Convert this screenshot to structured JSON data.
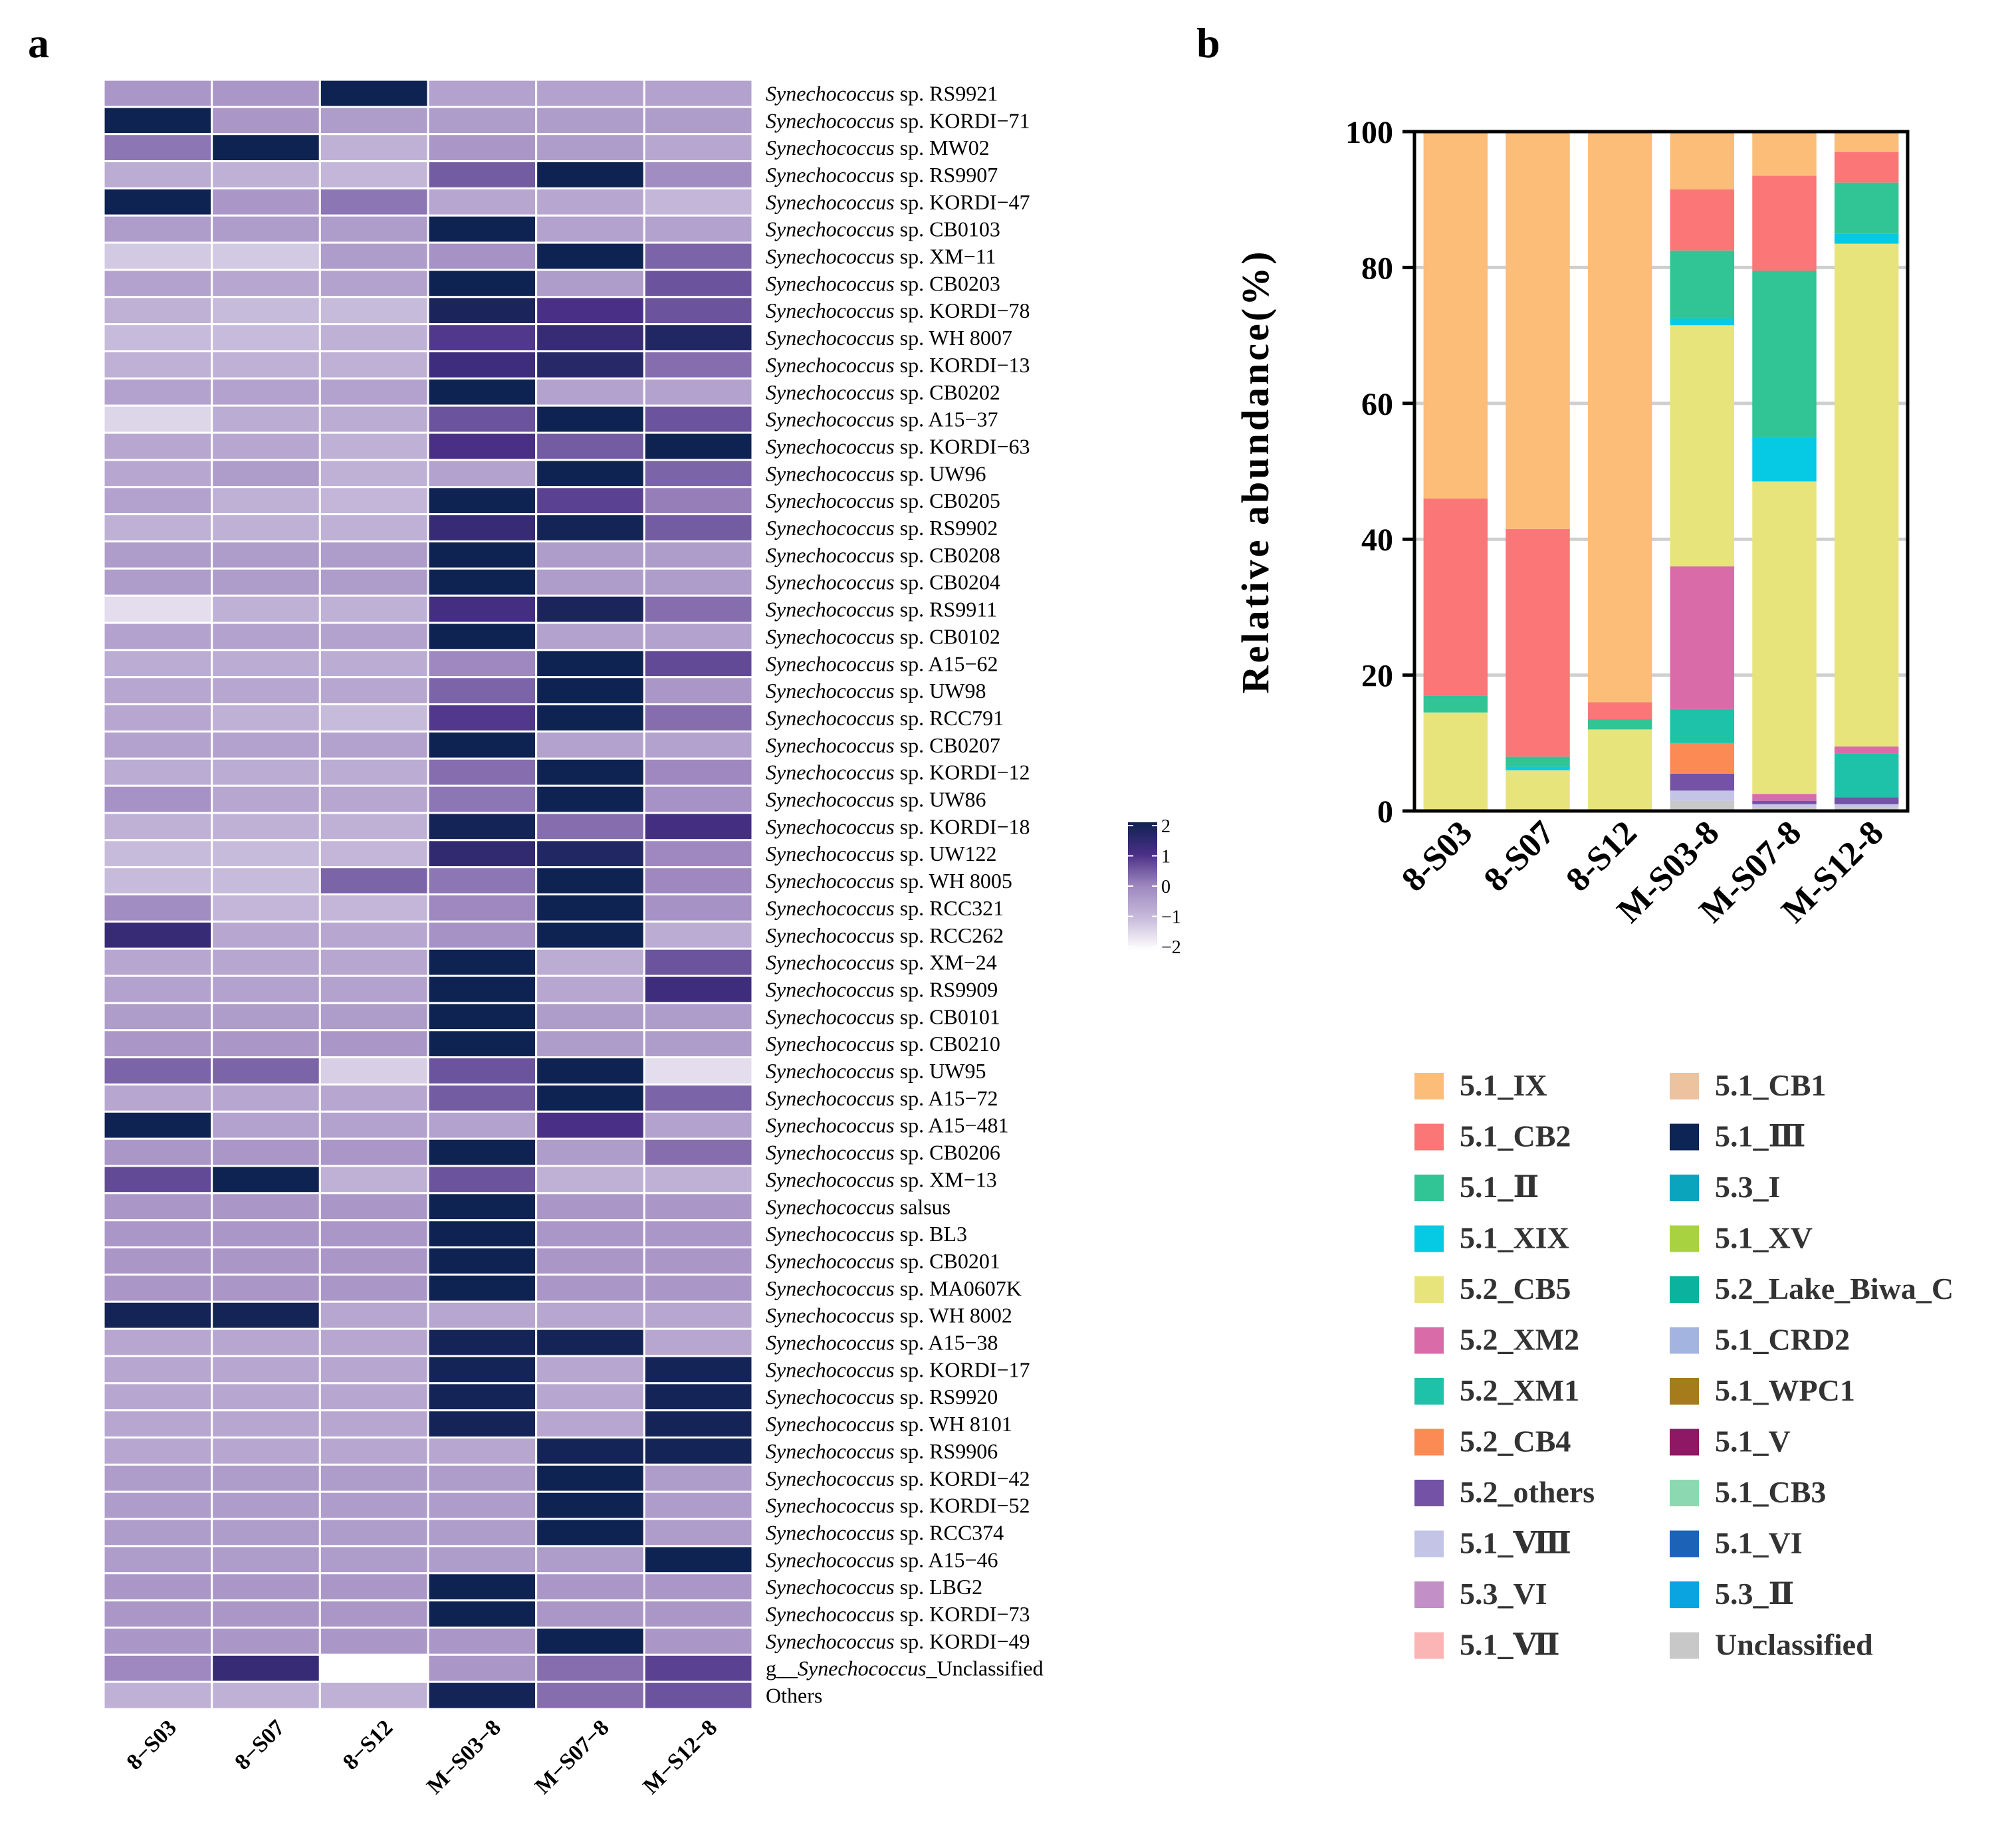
{
  "panels": {
    "a": "a",
    "b": "b"
  },
  "heatmap": {
    "samples": [
      "8−S03",
      "8−S07",
      "8−S12",
      "M−S03−8",
      "M−S07−8",
      "M−S12−8"
    ],
    "rows": [
      {
        "prefix": "Synechococcus",
        "suffix": " sp. RS9921",
        "italic_first": true
      },
      {
        "prefix": "Synechococcus",
        "suffix": " sp. KORDI−71",
        "italic_first": true
      },
      {
        "prefix": "Synechococcus",
        "suffix": " sp. MW02",
        "italic_first": true
      },
      {
        "prefix": "Synechococcus",
        "suffix": " sp. RS9907",
        "italic_first": true
      },
      {
        "prefix": "Synechococcus",
        "suffix": " sp. KORDI−47",
        "italic_first": true
      },
      {
        "prefix": "Synechococcus",
        "suffix": " sp. CB0103",
        "italic_first": true
      },
      {
        "prefix": "Synechococcus",
        "suffix": " sp. XM−11",
        "italic_first": true
      },
      {
        "prefix": "Synechococcus",
        "suffix": " sp. CB0203",
        "italic_first": true
      },
      {
        "prefix": "Synechococcus",
        "suffix": " sp. KORDI−78",
        "italic_first": true
      },
      {
        "prefix": "Synechococcus",
        "suffix": " sp. WH 8007",
        "italic_first": true
      },
      {
        "prefix": "Synechococcus",
        "suffix": " sp. KORDI−13",
        "italic_first": true
      },
      {
        "prefix": "Synechococcus",
        "suffix": " sp. CB0202",
        "italic_first": true
      },
      {
        "prefix": "Synechococcus",
        "suffix": " sp. A15−37",
        "italic_first": true
      },
      {
        "prefix": "Synechococcus",
        "suffix": " sp. KORDI−63",
        "italic_first": true
      },
      {
        "prefix": "Synechococcus",
        "suffix": " sp. UW96",
        "italic_first": true
      },
      {
        "prefix": "Synechococcus",
        "suffix": " sp. CB0205",
        "italic_first": true
      },
      {
        "prefix": "Synechococcus",
        "suffix": " sp. RS9902",
        "italic_first": true
      },
      {
        "prefix": "Synechococcus",
        "suffix": " sp. CB0208",
        "italic_first": true
      },
      {
        "prefix": "Synechococcus",
        "suffix": " sp. CB0204",
        "italic_first": true
      },
      {
        "prefix": "Synechococcus",
        "suffix": " sp. RS9911",
        "italic_first": true
      },
      {
        "prefix": "Synechococcus",
        "suffix": " sp. CB0102",
        "italic_first": true
      },
      {
        "prefix": "Synechococcus",
        "suffix": " sp. A15−62",
        "italic_first": true
      },
      {
        "prefix": "Synechococcus",
        "suffix": " sp. UW98",
        "italic_first": true
      },
      {
        "prefix": "Synechococcus",
        "suffix": " sp. RCC791",
        "italic_first": true
      },
      {
        "prefix": "Synechococcus",
        "suffix": " sp. CB0207",
        "italic_first": true
      },
      {
        "prefix": "Synechococcus",
        "suffix": " sp. KORDI−12",
        "italic_first": true
      },
      {
        "prefix": "Synechococcus",
        "suffix": " sp. UW86",
        "italic_first": true
      },
      {
        "prefix": "Synechococcus",
        "suffix": " sp. KORDI−18",
        "italic_first": true
      },
      {
        "prefix": "Synechococcus",
        "suffix": " sp. UW122",
        "italic_first": true
      },
      {
        "prefix": "Synechococcus",
        "suffix": " sp. WH 8005",
        "italic_first": true
      },
      {
        "prefix": "Synechococcus",
        "suffix": " sp. RCC321",
        "italic_first": true
      },
      {
        "prefix": "Synechococcus",
        "suffix": " sp. RCC262",
        "italic_first": true
      },
      {
        "prefix": "Synechococcus",
        "suffix": " sp. XM−24",
        "italic_first": true
      },
      {
        "prefix": "Synechococcus",
        "suffix": " sp. RS9909",
        "italic_first": true
      },
      {
        "prefix": "Synechococcus",
        "suffix": " sp. CB0101",
        "italic_first": true
      },
      {
        "prefix": "Synechococcus",
        "suffix": " sp. CB0210",
        "italic_first": true
      },
      {
        "prefix": "Synechococcus",
        "suffix": " sp. UW95",
        "italic_first": true
      },
      {
        "prefix": "Synechococcus",
        "suffix": " sp. A15−72",
        "italic_first": true
      },
      {
        "prefix": "Synechococcus",
        "suffix": " sp. A15−481",
        "italic_first": true
      },
      {
        "prefix": "Synechococcus",
        "suffix": " sp. CB0206",
        "italic_first": true
      },
      {
        "prefix": "Synechococcus",
        "suffix": " sp. XM−13",
        "italic_first": true
      },
      {
        "prefix": "Synechococcus",
        "suffix": " salsus",
        "italic_first": true
      },
      {
        "prefix": "Synechococcus",
        "suffix": " sp. BL3",
        "italic_first": true
      },
      {
        "prefix": "Synechococcus",
        "suffix": " sp. CB0201",
        "italic_first": true
      },
      {
        "prefix": "Synechococcus",
        "suffix": " sp. MA0607K",
        "italic_first": true
      },
      {
        "prefix": "Synechococcus",
        "suffix": " sp. WH 8002",
        "italic_first": true
      },
      {
        "prefix": "Synechococcus",
        "suffix": " sp. A15−38",
        "italic_first": true
      },
      {
        "prefix": "Synechococcus",
        "suffix": " sp. KORDI−17",
        "italic_first": true
      },
      {
        "prefix": "Synechococcus",
        "suffix": " sp. RS9920",
        "italic_first": true
      },
      {
        "prefix": "Synechococcus",
        "suffix": " sp. WH 8101",
        "italic_first": true
      },
      {
        "prefix": "Synechococcus",
        "suffix": " sp. RS9906",
        "italic_first": true
      },
      {
        "prefix": "Synechococcus",
        "suffix": " sp. KORDI−42",
        "italic_first": true
      },
      {
        "prefix": "Synechococcus",
        "suffix": " sp. KORDI−52",
        "italic_first": true
      },
      {
        "prefix": "Synechococcus",
        "suffix": " sp. RCC374",
        "italic_first": true
      },
      {
        "prefix": "Synechococcus",
        "suffix": " sp. A15−46",
        "italic_first": true
      },
      {
        "prefix": "Synechococcus",
        "suffix": " sp. LBG2",
        "italic_first": true
      },
      {
        "prefix": "Synechococcus",
        "suffix": " sp. KORDI−73",
        "italic_first": true
      },
      {
        "prefix": "Synechococcus",
        "suffix": " sp. KORDI−49",
        "italic_first": true
      },
      {
        "prefix": "g__",
        "middle": "Synechococcus",
        "suffix": "_Unclassified",
        "italic_first": false
      },
      {
        "prefix": "Others",
        "suffix": "",
        "italic_first": false
      }
    ],
    "colorscale": {
      "ticks": [
        "2",
        "1",
        "0",
        "−1",
        "−2"
      ],
      "stops": [
        "#ffffff",
        "#c7bbdb",
        "#9e88bf",
        "#4a2f86",
        "#0f2352"
      ]
    }
  },
  "chart_data": [
    {
      "type": "heatmap",
      "title": "",
      "xlabel": "",
      "ylabel": "",
      "x": [
        "8−S03",
        "8−S07",
        "8−S12",
        "M−S03−8",
        "M−S07−8",
        "M−S12−8"
      ],
      "value_range": [
        -2,
        2
      ],
      "values": [
        [
          -0.3,
          -0.3,
          2.2,
          -0.5,
          -0.5,
          -0.5
        ],
        [
          2.2,
          -0.3,
          -0.4,
          -0.4,
          -0.4,
          -0.4
        ],
        [
          0.2,
          2.2,
          -0.8,
          -0.3,
          -0.4,
          -0.6
        ],
        [
          -0.7,
          -0.8,
          -0.9,
          0.5,
          2.2,
          -0.1
        ],
        [
          2.2,
          -0.3,
          0.2,
          -0.6,
          -0.6,
          -0.9
        ],
        [
          -0.4,
          -0.4,
          -0.4,
          2.2,
          -0.5,
          -0.5
        ],
        [
          -1.2,
          -1.2,
          -0.4,
          -0.2,
          2.0,
          0.4
        ],
        [
          -0.5,
          -0.6,
          -0.5,
          2.1,
          -0.4,
          0.6
        ],
        [
          -0.8,
          -1.0,
          -1.0,
          1.8,
          1.0,
          0.6
        ],
        [
          -1.0,
          -1.0,
          -0.8,
          0.9,
          1.3,
          1.7
        ],
        [
          -0.8,
          -0.8,
          -0.8,
          1.2,
          1.6,
          0.3
        ],
        [
          -0.5,
          -0.5,
          -0.5,
          2.2,
          -0.5,
          -0.5
        ],
        [
          -1.4,
          -0.7,
          -0.7,
          0.6,
          2.0,
          0.6
        ],
        [
          -0.6,
          -0.6,
          -0.8,
          1.0,
          0.5,
          2.0
        ],
        [
          -0.6,
          -0.4,
          -0.8,
          -0.5,
          2.1,
          0.4
        ],
        [
          -0.5,
          -0.8,
          -0.9,
          2.1,
          0.8,
          0.1
        ],
        [
          -0.8,
          -0.8,
          -0.8,
          1.3,
          1.9,
          0.5
        ],
        [
          -0.4,
          -0.4,
          -0.4,
          2.2,
          -0.4,
          -0.4
        ],
        [
          -0.4,
          -0.4,
          -0.4,
          2.2,
          -0.4,
          -0.4
        ],
        [
          -1.5,
          -0.8,
          -0.8,
          1.1,
          1.8,
          0.3
        ],
        [
          -0.5,
          -0.5,
          -0.5,
          2.2,
          -0.5,
          -0.5
        ],
        [
          -0.7,
          -0.7,
          -0.7,
          0.0,
          2.2,
          0.7
        ],
        [
          -0.6,
          -0.6,
          -0.6,
          0.4,
          2.2,
          -0.3
        ],
        [
          -0.6,
          -0.8,
          -1.0,
          0.9,
          2.0,
          0.3
        ],
        [
          -0.5,
          -0.5,
          -0.5,
          2.2,
          -0.5,
          -0.5
        ],
        [
          -0.7,
          -0.7,
          -0.7,
          0.3,
          2.2,
          0.0
        ],
        [
          -0.2,
          -0.6,
          -0.6,
          0.2,
          2.2,
          -0.2
        ],
        [
          -0.8,
          -0.8,
          -0.8,
          1.9,
          0.3,
          1.1
        ],
        [
          -1.0,
          -1.0,
          -0.9,
          1.4,
          1.7,
          0.0
        ],
        [
          -1.0,
          -1.0,
          0.4,
          0.2,
          2.1,
          0.0
        ],
        [
          -0.1,
          -0.9,
          -0.9,
          0.0,
          2.2,
          -0.2
        ],
        [
          1.3,
          -0.6,
          -0.6,
          -0.2,
          2.1,
          -0.7
        ],
        [
          -0.6,
          -0.6,
          -0.6,
          2.2,
          -0.7,
          0.6
        ],
        [
          -0.5,
          -0.5,
          -0.5,
          2.0,
          -0.6,
          1.2
        ],
        [
          -0.4,
          -0.4,
          -0.4,
          2.2,
          -0.4,
          -0.4
        ],
        [
          -0.3,
          -0.3,
          -0.3,
          2.2,
          -0.4,
          -0.4
        ],
        [
          0.4,
          0.4,
          -1.3,
          0.6,
          2.1,
          -1.5
        ],
        [
          -0.6,
          -0.6,
          -0.6,
          0.5,
          2.2,
          0.4
        ],
        [
          2.1,
          -0.5,
          -0.5,
          -0.5,
          1.0,
          -0.5
        ],
        [
          -0.3,
          -0.3,
          -0.3,
          2.2,
          -0.4,
          0.3
        ],
        [
          0.7,
          2.1,
          -0.8,
          0.6,
          -0.8,
          -0.8
        ],
        [
          -0.3,
          -0.3,
          -0.3,
          2.2,
          -0.3,
          -0.3
        ],
        [
          -0.3,
          -0.3,
          -0.3,
          2.2,
          -0.3,
          -0.3
        ],
        [
          -0.3,
          -0.3,
          -0.3,
          2.2,
          -0.3,
          -0.3
        ],
        [
          -0.3,
          -0.3,
          -0.3,
          2.2,
          -0.3,
          -0.3
        ],
        [
          1.9,
          1.9,
          -0.6,
          -0.6,
          -0.6,
          -0.6
        ],
        [
          -0.6,
          -0.6,
          -0.6,
          1.9,
          1.9,
          -0.6
        ],
        [
          -0.6,
          -0.6,
          -0.6,
          1.9,
          -0.6,
          1.9
        ],
        [
          -0.6,
          -0.6,
          -0.6,
          1.9,
          -0.6,
          1.9
        ],
        [
          -0.6,
          -0.6,
          -0.6,
          1.9,
          -0.6,
          1.9
        ],
        [
          -0.6,
          -0.6,
          -0.6,
          -0.6,
          1.9,
          1.9
        ],
        [
          -0.4,
          -0.4,
          -0.4,
          -0.4,
          2.2,
          -0.4
        ],
        [
          -0.4,
          -0.4,
          -0.4,
          -0.4,
          2.2,
          -0.4
        ],
        [
          -0.4,
          -0.4,
          -0.4,
          -0.4,
          2.2,
          -0.4
        ],
        [
          -0.4,
          -0.4,
          -0.4,
          -0.4,
          -0.4,
          2.2
        ],
        [
          -0.3,
          -0.3,
          -0.3,
          2.2,
          -0.3,
          -0.3
        ],
        [
          -0.3,
          -0.3,
          -0.3,
          2.2,
          -0.3,
          -0.3
        ],
        [
          -0.3,
          -0.3,
          -0.3,
          -0.3,
          2.2,
          -0.3
        ],
        [
          0.0,
          1.3,
          -2.0,
          -0.3,
          0.3,
          0.8
        ],
        [
          -0.8,
          -0.8,
          -0.8,
          1.9,
          0.3,
          0.6
        ]
      ]
    },
    {
      "type": "bar",
      "stacked": true,
      "title": "",
      "xlabel": "",
      "ylabel": "Relative abundance(%)",
      "ylim": [
        0,
        100
      ],
      "yticks": [
        "0",
        "20",
        "40",
        "60",
        "80",
        "100"
      ],
      "categories": [
        "8-S03",
        "8-S07",
        "8-S12",
        "M-S03-8",
        "M-S07-8",
        "M-S12-8"
      ],
      "series": [
        {
          "name": "Unclassified",
          "color": "#c8c8c8",
          "values": [
            0,
            0,
            0,
            1.5,
            0.5,
            0.5
          ]
        },
        {
          "name": "5.1_VIII",
          "color": "#c3c4e6",
          "values": [
            0,
            0,
            0,
            1.5,
            0.5,
            0.5
          ]
        },
        {
          "name": "5.2_others",
          "color": "#7452a6",
          "values": [
            0,
            0,
            0,
            2.5,
            0.5,
            1.0
          ]
        },
        {
          "name": "5.2_CB4",
          "color": "#fc8a55",
          "values": [
            0,
            0,
            0,
            4.5,
            0,
            0
          ]
        },
        {
          "name": "5.2_XM1",
          "color": "#1dc2a8",
          "values": [
            0,
            0,
            0,
            5.0,
            0,
            6.5
          ]
        },
        {
          "name": "5.2_XM2",
          "color": "#d96ba9",
          "values": [
            0,
            0,
            0,
            21.0,
            1.0,
            1.0
          ]
        },
        {
          "name": "5.2_CB5",
          "color": "#e8e47c",
          "values": [
            14.5,
            6.0,
            12.0,
            35.5,
            46.0,
            74.0
          ]
        },
        {
          "name": "5.1_XIX",
          "color": "#06c9e4",
          "values": [
            0,
            0.5,
            0,
            1.0,
            6.5,
            1.5
          ]
        },
        {
          "name": "5.1_II",
          "color": "#31c495",
          "values": [
            2.5,
            1.5,
            1.5,
            10.0,
            24.5,
            7.5
          ]
        },
        {
          "name": "5.1_CB2",
          "color": "#fb7676",
          "values": [
            29.0,
            33.5,
            2.5,
            9.0,
            14.0,
            4.5
          ]
        },
        {
          "name": "5.1_IX",
          "color": "#fbbd78",
          "values": [
            54.0,
            58.5,
            84.0,
            8.5,
            6.5,
            3.0
          ]
        }
      ]
    }
  ],
  "legend": {
    "left": [
      {
        "label": "5.1_IX",
        "color": "#fbbd78"
      },
      {
        "label": "5.1_CB2",
        "color": "#fb7676"
      },
      {
        "label": "5.1_Ⅱ",
        "color": "#31c495"
      },
      {
        "label": "5.1_XIX",
        "color": "#06c9e4"
      },
      {
        "label": "5.2_CB5",
        "color": "#e8e47c"
      },
      {
        "label": "5.2_XM2",
        "color": "#d96ba9"
      },
      {
        "label": "5.2_XM1",
        "color": "#1dc2a8"
      },
      {
        "label": "5.2_CB4",
        "color": "#fc8a55"
      },
      {
        "label": "5.2_others",
        "color": "#7452a6"
      },
      {
        "label": "5.1_Ⅷ",
        "color": "#c3c4e6"
      },
      {
        "label": "5.3_VI",
        "color": "#c290c6"
      },
      {
        "label": "5.1_Ⅶ",
        "color": "#fbb5b5"
      }
    ],
    "right": [
      {
        "label": "5.1_CB1",
        "color": "#edc29f"
      },
      {
        "label": "5.1_Ⅲ",
        "color": "#0d2555"
      },
      {
        "label": "5.3_I",
        "color": "#0aa4bd"
      },
      {
        "label": "5.1_XV",
        "color": "#a8d23f"
      },
      {
        "label": "5.2_Lake_Biwa_C",
        "color": "#0bb39e"
      },
      {
        "label": "5.1_CRD2",
        "color": "#a4b4e0"
      },
      {
        "label": "5.1_WPC1",
        "color": "#a67b1c"
      },
      {
        "label": "5.1_V",
        "color": "#8e1864"
      },
      {
        "label": "5.1_CB3",
        "color": "#8cd8b0"
      },
      {
        "label": "5.1_VI",
        "color": "#1c63b7"
      },
      {
        "label": "5.3_Ⅱ",
        "color": "#0aa5e0"
      },
      {
        "label": "Unclassified",
        "color": "#c8c8c8"
      }
    ]
  }
}
